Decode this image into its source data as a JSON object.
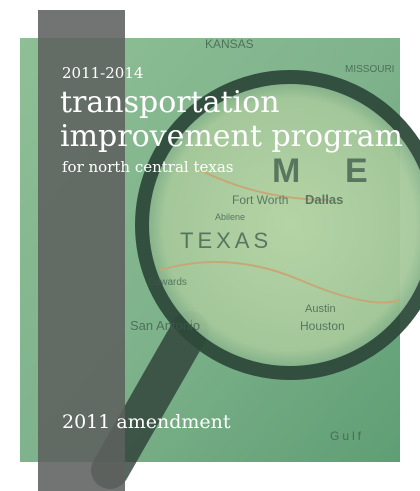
{
  "cover": {
    "years": "2011-2014",
    "title_lines": [
      "transportation",
      "improvement program"
    ],
    "subtitle": "for north central texas",
    "edition": "2011 amendment"
  },
  "map_labels": [
    "KANSAS",
    "MISSOURI",
    "M",
    "E",
    "Fort Worth",
    "Dallas",
    "TEXAS",
    "Abilene",
    "Edwards",
    "Austin",
    "San Antonio",
    "Houston",
    "Gulf"
  ]
}
